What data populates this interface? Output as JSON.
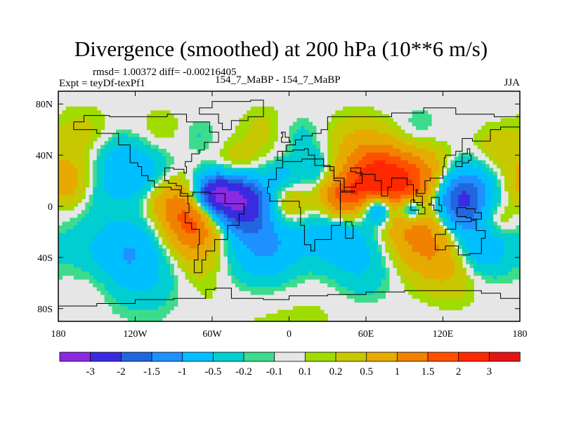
{
  "title": "Divergence (smoothed) at 200 hPa (10**6 m/s)",
  "stats_line": "rmsd= 1.00372 diff= -0.00216405",
  "expt_line": "Expt = teyDf-texPf1",
  "case_line": "154_7_MaBP - 154_7_MaBP",
  "season": "JJA",
  "colors": {
    "background_field": "#e6e6e6",
    "coastline": "#000000"
  },
  "chart_data": {
    "type": "heatmap",
    "map_projection": "cylindrical equidistant",
    "xlim": [
      -180,
      180
    ],
    "ylim": [
      -90,
      90
    ],
    "x_ticks": [
      {
        "value": -180,
        "label": "180"
      },
      {
        "value": -120,
        "label": "120W"
      },
      {
        "value": -60,
        "label": "60W"
      },
      {
        "value": 0,
        "label": "0"
      },
      {
        "value": 60,
        "label": "60E"
      },
      {
        "value": 120,
        "label": "120E"
      },
      {
        "value": 180,
        "label": "180"
      }
    ],
    "y_ticks": [
      {
        "value": 80,
        "label": "80N"
      },
      {
        "value": 40,
        "label": "40N"
      },
      {
        "value": 0,
        "label": "0"
      },
      {
        "value": -40,
        "label": "40S"
      },
      {
        "value": -80,
        "label": "80S"
      }
    ],
    "legend": {
      "placement": "bottom",
      "colors": [
        "#8a2be2",
        "#3a2be2",
        "#2266dd",
        "#1e90ff",
        "#00bfff",
        "#00ced1",
        "#3cdc8c",
        "#e6e6e6",
        "#a0dc00",
        "#c8c800",
        "#e6aa00",
        "#f08200",
        "#ff5000",
        "#ff2800",
        "#e61414"
      ],
      "labels": [
        "-3",
        "-2",
        "-1.5",
        "-1",
        "-0.5",
        "-0.2",
        "-0.1",
        "0.1",
        "0.2",
        "0.5",
        "1",
        "1.5",
        "2",
        "3"
      ]
    },
    "blobs": [
      {
        "lon": -40,
        "lat": 5,
        "r": 22,
        "value": -3.2
      },
      {
        "lon": -60,
        "lat": 10,
        "r": 15,
        "value": -2.2
      },
      {
        "lon": 130,
        "lat": 5,
        "r": 26,
        "value": -3.0
      },
      {
        "lon": 70,
        "lat": -2,
        "r": 12,
        "value": -2.0
      },
      {
        "lon": 95,
        "lat": -2,
        "r": 10,
        "value": -1.8
      },
      {
        "lon": -150,
        "lat": 12,
        "r": 30,
        "value": -1.2
      },
      {
        "lon": -110,
        "lat": 20,
        "r": 22,
        "value": -0.9
      },
      {
        "lon": -130,
        "lat": -28,
        "r": 35,
        "value": -1.3
      },
      {
        "lon": -20,
        "lat": -30,
        "r": 30,
        "value": -1.2
      },
      {
        "lon": 40,
        "lat": -20,
        "r": 28,
        "value": -1.0
      },
      {
        "lon": 150,
        "lat": -32,
        "r": 22,
        "value": -1.0
      },
      {
        "lon": -100,
        "lat": -55,
        "r": 30,
        "value": -0.4
      },
      {
        "lon": 60,
        "lat": -50,
        "r": 25,
        "value": -0.4
      },
      {
        "lon": 20,
        "lat": 30,
        "r": 15,
        "value": -0.6
      },
      {
        "lon": -130,
        "lat": 40,
        "r": 18,
        "value": -0.4
      },
      {
        "lon": -5,
        "lat": 25,
        "r": 12,
        "value": -0.5
      },
      {
        "lon": 70,
        "lat": 20,
        "r": 28,
        "value": 2.4
      },
      {
        "lon": 110,
        "lat": 18,
        "r": 25,
        "value": 1.6
      },
      {
        "lon": 40,
        "lat": 5,
        "r": 18,
        "value": 1.5
      },
      {
        "lon": -75,
        "lat": -12,
        "r": 26,
        "value": 1.8
      },
      {
        "lon": -140,
        "lat": -5,
        "r": 30,
        "value": 1.1
      },
      {
        "lon": 110,
        "lat": -22,
        "r": 30,
        "value": 1.5
      },
      {
        "lon": -170,
        "lat": 18,
        "r": 22,
        "value": 1.2
      },
      {
        "lon": -100,
        "lat": 8,
        "r": 20,
        "value": 0.9
      },
      {
        "lon": -40,
        "lat": 28,
        "r": 18,
        "value": 0.8
      },
      {
        "lon": 0,
        "lat": 0,
        "r": 16,
        "value": 0.8
      },
      {
        "lon": -160,
        "lat": 52,
        "r": 25,
        "value": 0.35
      },
      {
        "lon": 50,
        "lat": 50,
        "r": 25,
        "value": 0.3
      },
      {
        "lon": 160,
        "lat": 45,
        "r": 18,
        "value": 0.35
      },
      {
        "lon": -20,
        "lat": 60,
        "r": 20,
        "value": 0.25
      },
      {
        "lon": -100,
        "lat": 60,
        "r": 18,
        "value": 0.22
      },
      {
        "lon": 100,
        "lat": 60,
        "r": 18,
        "value": -0.25
      },
      {
        "lon": 10,
        "lat": 55,
        "r": 16,
        "value": -0.3
      },
      {
        "lon": -70,
        "lat": 55,
        "r": 14,
        "value": -0.22
      },
      {
        "lon": -80,
        "lat": -48,
        "r": 30,
        "value": 0.35
      },
      {
        "lon": 130,
        "lat": -55,
        "r": 22,
        "value": 0.3
      },
      {
        "lon": -150,
        "lat": -60,
        "r": 20,
        "value": 0.25
      },
      {
        "lon": 0,
        "lat": -85,
        "r": 60,
        "value": 0.15
      },
      {
        "lon": 160,
        "lat": -10,
        "r": 15,
        "value": 0.7
      }
    ]
  }
}
